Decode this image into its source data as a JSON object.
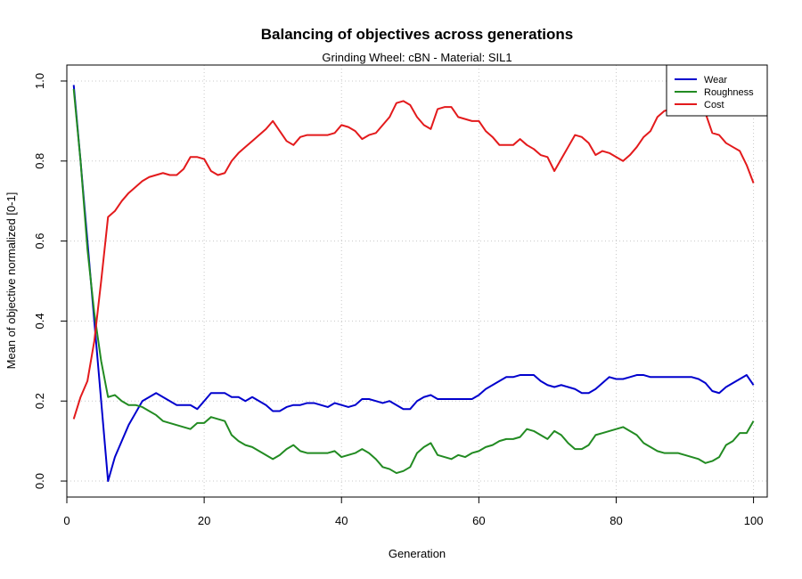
{
  "chart_data": {
    "type": "line",
    "title": "Balancing of objectives across generations",
    "subtitle": "Grinding Wheel: cBN - Material: SIL1",
    "xlabel": "Generation",
    "ylabel": "Mean of objective normalized [0-1]",
    "xlim": [
      0,
      102
    ],
    "ylim": [
      -0.04,
      1.04
    ],
    "xticks": [
      0,
      20,
      40,
      60,
      80,
      100
    ],
    "yticks": [
      0.0,
      0.2,
      0.4,
      0.6,
      0.8,
      1.0
    ],
    "xtick_labels": [
      "0",
      "20",
      "40",
      "60",
      "80",
      "100"
    ],
    "ytick_labels": [
      "0.0",
      "0.2",
      "0.4",
      "0.6",
      "0.8",
      "1.0"
    ],
    "grid": true,
    "legend_position": "top-right",
    "series": [
      {
        "name": "Wear",
        "color": "#0000CD",
        "x": [
          1,
          2,
          3,
          4,
          5,
          6,
          7,
          8,
          9,
          10,
          11,
          12,
          13,
          14,
          15,
          16,
          17,
          18,
          19,
          20,
          21,
          22,
          23,
          24,
          25,
          26,
          27,
          28,
          29,
          30,
          31,
          32,
          33,
          34,
          35,
          36,
          37,
          38,
          39,
          40,
          41,
          42,
          43,
          44,
          45,
          46,
          47,
          48,
          49,
          50,
          51,
          52,
          53,
          54,
          55,
          56,
          57,
          58,
          59,
          60,
          61,
          62,
          63,
          64,
          65,
          66,
          67,
          68,
          69,
          70,
          71,
          72,
          73,
          74,
          75,
          76,
          77,
          78,
          79,
          80,
          81,
          82,
          83,
          84,
          85,
          86,
          87,
          88,
          89,
          90,
          91,
          92,
          93,
          94,
          95,
          96,
          97,
          98,
          99,
          100
        ],
        "values": [
          0.99,
          0.8,
          0.6,
          0.4,
          0.2,
          0.0,
          0.06,
          0.1,
          0.14,
          0.17,
          0.2,
          0.21,
          0.22,
          0.21,
          0.2,
          0.19,
          0.19,
          0.19,
          0.18,
          0.2,
          0.22,
          0.22,
          0.22,
          0.21,
          0.21,
          0.2,
          0.21,
          0.2,
          0.19,
          0.175,
          0.175,
          0.185,
          0.19,
          0.19,
          0.195,
          0.195,
          0.19,
          0.185,
          0.195,
          0.19,
          0.185,
          0.19,
          0.205,
          0.205,
          0.2,
          0.195,
          0.2,
          0.19,
          0.18,
          0.18,
          0.2,
          0.21,
          0.215,
          0.205,
          0.205,
          0.205,
          0.205,
          0.205,
          0.205,
          0.215,
          0.23,
          0.24,
          0.25,
          0.26,
          0.26,
          0.265,
          0.265,
          0.265,
          0.25,
          0.24,
          0.235,
          0.24,
          0.235,
          0.23,
          0.22,
          0.22,
          0.23,
          0.245,
          0.26,
          0.255,
          0.255,
          0.26,
          0.265,
          0.265,
          0.26,
          0.26,
          0.26,
          0.26,
          0.26,
          0.26,
          0.26,
          0.255,
          0.245,
          0.225,
          0.22,
          0.235,
          0.245,
          0.255,
          0.265,
          0.24
        ]
      },
      {
        "name": "Roughness",
        "color": "#228B22",
        "x": [
          1,
          2,
          3,
          4,
          5,
          6,
          7,
          8,
          9,
          10,
          11,
          12,
          13,
          14,
          15,
          16,
          17,
          18,
          19,
          20,
          21,
          22,
          23,
          24,
          25,
          26,
          27,
          28,
          29,
          30,
          31,
          32,
          33,
          34,
          35,
          36,
          37,
          38,
          39,
          40,
          41,
          42,
          43,
          44,
          45,
          46,
          47,
          48,
          49,
          50,
          51,
          52,
          53,
          54,
          55,
          56,
          57,
          58,
          59,
          60,
          61,
          62,
          63,
          64,
          65,
          66,
          67,
          68,
          69,
          70,
          71,
          72,
          73,
          74,
          75,
          76,
          77,
          78,
          79,
          80,
          81,
          82,
          83,
          84,
          85,
          86,
          87,
          88,
          89,
          90,
          91,
          92,
          93,
          94,
          95,
          96,
          97,
          98,
          99,
          100
        ],
        "values": [
          0.98,
          0.8,
          0.58,
          0.42,
          0.3,
          0.21,
          0.215,
          0.2,
          0.19,
          0.19,
          0.185,
          0.175,
          0.165,
          0.15,
          0.145,
          0.14,
          0.135,
          0.13,
          0.145,
          0.145,
          0.16,
          0.155,
          0.15,
          0.115,
          0.1,
          0.09,
          0.085,
          0.075,
          0.065,
          0.055,
          0.065,
          0.08,
          0.09,
          0.075,
          0.07,
          0.07,
          0.07,
          0.07,
          0.075,
          0.06,
          0.065,
          0.07,
          0.08,
          0.07,
          0.055,
          0.035,
          0.03,
          0.02,
          0.025,
          0.035,
          0.07,
          0.085,
          0.095,
          0.065,
          0.06,
          0.055,
          0.065,
          0.06,
          0.07,
          0.075,
          0.085,
          0.09,
          0.1,
          0.105,
          0.105,
          0.11,
          0.13,
          0.125,
          0.115,
          0.105,
          0.125,
          0.115,
          0.095,
          0.08,
          0.08,
          0.09,
          0.115,
          0.12,
          0.125,
          0.13,
          0.135,
          0.125,
          0.115,
          0.095,
          0.085,
          0.075,
          0.07,
          0.07,
          0.07,
          0.065,
          0.06,
          0.055,
          0.045,
          0.05,
          0.06,
          0.09,
          0.1,
          0.12,
          0.12,
          0.15
        ]
      },
      {
        "name": "Cost",
        "color": "#E31A1C",
        "x": [
          1,
          2,
          3,
          4,
          5,
          6,
          7,
          8,
          9,
          10,
          11,
          12,
          13,
          14,
          15,
          16,
          17,
          18,
          19,
          20,
          21,
          22,
          23,
          24,
          25,
          26,
          27,
          28,
          29,
          30,
          31,
          32,
          33,
          34,
          35,
          36,
          37,
          38,
          39,
          40,
          41,
          42,
          43,
          44,
          45,
          46,
          47,
          48,
          49,
          50,
          51,
          52,
          53,
          54,
          55,
          56,
          57,
          58,
          59,
          60,
          61,
          62,
          63,
          64,
          65,
          66,
          67,
          68,
          69,
          70,
          71,
          72,
          73,
          74,
          75,
          76,
          77,
          78,
          79,
          80,
          81,
          82,
          83,
          84,
          85,
          86,
          87,
          88,
          89,
          90,
          91,
          92,
          93,
          94,
          95,
          96,
          97,
          98,
          99,
          100
        ],
        "values": [
          0.155,
          0.21,
          0.25,
          0.35,
          0.5,
          0.66,
          0.675,
          0.7,
          0.72,
          0.735,
          0.75,
          0.76,
          0.765,
          0.77,
          0.765,
          0.765,
          0.78,
          0.81,
          0.81,
          0.805,
          0.775,
          0.765,
          0.77,
          0.8,
          0.82,
          0.835,
          0.85,
          0.865,
          0.88,
          0.9,
          0.875,
          0.85,
          0.84,
          0.86,
          0.865,
          0.865,
          0.865,
          0.865,
          0.87,
          0.89,
          0.885,
          0.875,
          0.855,
          0.865,
          0.87,
          0.89,
          0.91,
          0.945,
          0.95,
          0.94,
          0.91,
          0.89,
          0.88,
          0.93,
          0.935,
          0.935,
          0.91,
          0.905,
          0.9,
          0.9,
          0.875,
          0.86,
          0.84,
          0.84,
          0.84,
          0.855,
          0.84,
          0.83,
          0.815,
          0.81,
          0.775,
          0.805,
          0.835,
          0.865,
          0.86,
          0.845,
          0.815,
          0.825,
          0.82,
          0.81,
          0.8,
          0.815,
          0.835,
          0.86,
          0.875,
          0.91,
          0.925,
          0.93,
          0.93,
          0.93,
          0.94,
          0.945,
          0.92,
          0.87,
          0.865,
          0.845,
          0.835,
          0.825,
          0.79,
          0.745
        ]
      }
    ]
  }
}
